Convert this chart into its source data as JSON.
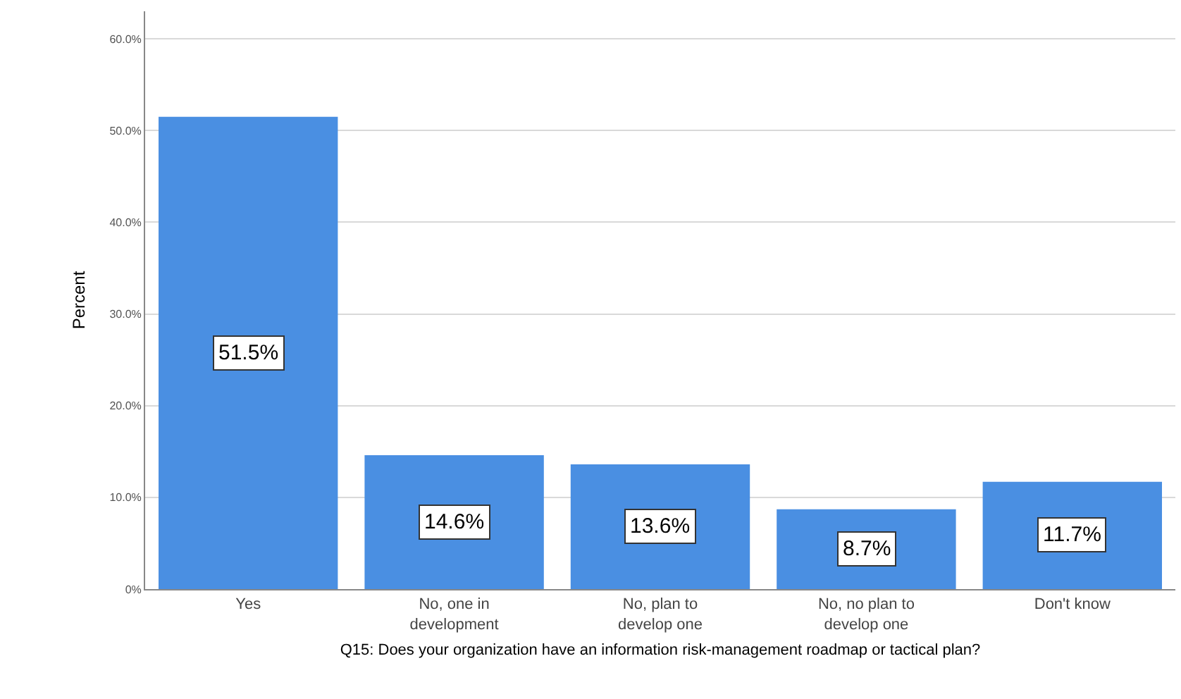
{
  "chart_data": {
    "type": "bar",
    "xlabel": "Q15: Does your organization have an information risk-management roadmap or tactical plan?",
    "ylabel": "Percent",
    "categories": [
      "Yes",
      "No, one in\ndevelopment",
      "No, plan to\ndevelop one",
      "No, no plan to\ndevelop one",
      "Don't know"
    ],
    "values": [
      51.5,
      14.6,
      13.6,
      8.7,
      11.7
    ],
    "value_labels": [
      "51.5%",
      "14.6%",
      "13.6%",
      "8.7%",
      "11.7%"
    ],
    "color": "#4a8fe2",
    "ylim": [
      0,
      63
    ],
    "yticks": [
      {
        "value": 0,
        "label": "0%"
      },
      {
        "value": 10,
        "label": "10.0%"
      },
      {
        "value": 20,
        "label": "20.0%"
      },
      {
        "value": 30,
        "label": "30.0%"
      },
      {
        "value": 40,
        "label": "40.0%"
      },
      {
        "value": 50,
        "label": "50.0%"
      },
      {
        "value": 60,
        "label": "60.0%"
      }
    ],
    "grid": "y"
  }
}
